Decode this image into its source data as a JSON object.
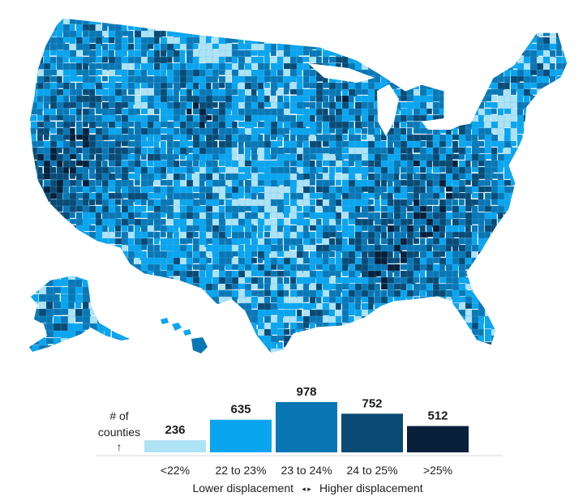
{
  "legend": {
    "axis_label_line1": "# of",
    "axis_label_line2": "counties",
    "axis_arrow": "↑",
    "low_caption": "Lower displacement",
    "high_caption": "Higher displacement",
    "caption_arrows": "◂ ▸"
  },
  "chart_data": {
    "type": "bar",
    "categories": [
      "<22%",
      "22 to 23%",
      "23 to 24%",
      "24 to 25%",
      ">25%"
    ],
    "values": [
      236,
      635,
      978,
      752,
      512
    ],
    "colors": [
      "#aee3f5",
      "#0aa5ef",
      "#0a77b5",
      "#0a4a74",
      "#08203a"
    ],
    "ylim": [
      0,
      978
    ]
  }
}
